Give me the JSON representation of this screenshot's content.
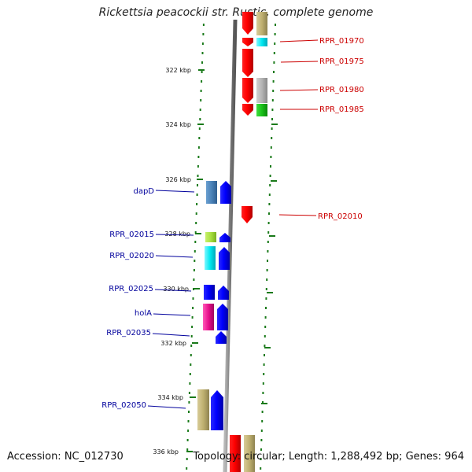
{
  "title": "Rickettsia peacockii str. Rustic, complete genome",
  "accession": "Accession: NC_012730",
  "summary": "Topology: circular; Length: 1,288,492 bp; Genes: 964",
  "colors": {
    "ruler": "#1a7a1a",
    "forward_label": "#cc0000",
    "reverse_label": "#00009c",
    "backbone": "#8a8a8a"
  },
  "ruler_ticks": [
    {
      "label": "322 kbp"
    },
    {
      "label": "324 kbp"
    },
    {
      "label": "326 kbp"
    },
    {
      "label": "328 kbp"
    },
    {
      "label": "330 kbp"
    },
    {
      "label": "332 kbp"
    },
    {
      "label": "334 kbp"
    },
    {
      "label": "336 kbp"
    }
  ],
  "forward_labels": [
    {
      "text": "RPR_01970"
    },
    {
      "text": "RPR_01975"
    },
    {
      "text": "RPR_01980"
    },
    {
      "text": "RPR_01985"
    },
    {
      "text": "RPR_02010"
    }
  ],
  "reverse_labels": [
    {
      "text": "dapD"
    },
    {
      "text": "RPR_02015"
    },
    {
      "text": "RPR_02020"
    },
    {
      "text": "RPR_02025"
    },
    {
      "text": "holA"
    },
    {
      "text": "RPR_02035"
    },
    {
      "text": "RPR_02050"
    }
  ]
}
